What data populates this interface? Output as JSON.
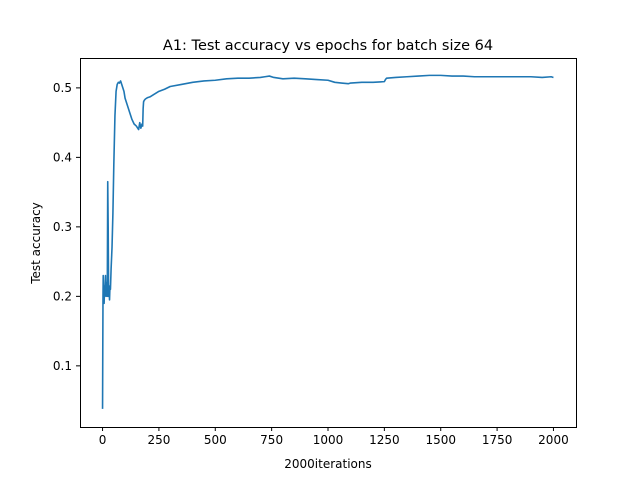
{
  "chart_data": {
    "type": "line",
    "title": "A1: Test accuracy vs epochs for batch size 64",
    "xlabel": "2000iterations",
    "ylabel": "Test accuracy",
    "xlim": [
      -100,
      2100
    ],
    "ylim": [
      0.012,
      0.543
    ],
    "xticks": [
      0,
      250,
      500,
      750,
      1000,
      1250,
      1500,
      1750,
      2000
    ],
    "yticks": [
      0.1,
      0.2,
      0.3,
      0.4,
      0.5
    ],
    "ytick_labels": [
      "0.1",
      "0.2",
      "0.3",
      "0.4",
      "0.5"
    ],
    "grid": false,
    "series_color": "#1f77b4",
    "series": [
      {
        "x": [
          0,
          1,
          2,
          3,
          5,
          7,
          9,
          11,
          13,
          15,
          17,
          19,
          21,
          23,
          25,
          27,
          29,
          31,
          33,
          35,
          38,
          42,
          46,
          50,
          55,
          60,
          65,
          70,
          75,
          80,
          85,
          90,
          95,
          100,
          110,
          120,
          130,
          140,
          150,
          160,
          165,
          170,
          175,
          178,
          180,
          182,
          185,
          190,
          200,
          210,
          225,
          250,
          275,
          300,
          350,
          400,
          450,
          500,
          550,
          600,
          650,
          700,
          720,
          740,
          760,
          800,
          850,
          900,
          950,
          1000,
          1030,
          1060,
          1090,
          1100,
          1150,
          1200,
          1250,
          1255,
          1260,
          1300,
          1350,
          1400,
          1450,
          1500,
          1550,
          1600,
          1650,
          1700,
          1750,
          1800,
          1850,
          1900,
          1950,
          1990,
          2000
        ],
        "y": [
          0.038,
          0.12,
          0.2,
          0.23,
          0.21,
          0.19,
          0.215,
          0.205,
          0.23,
          0.2,
          0.21,
          0.22,
          0.2,
          0.365,
          0.3,
          0.2,
          0.21,
          0.195,
          0.215,
          0.21,
          0.24,
          0.27,
          0.32,
          0.39,
          0.46,
          0.495,
          0.505,
          0.508,
          0.507,
          0.51,
          0.505,
          0.5,
          0.495,
          0.485,
          0.475,
          0.465,
          0.455,
          0.448,
          0.445,
          0.44,
          0.45,
          0.442,
          0.448,
          0.445,
          0.47,
          0.48,
          0.482,
          0.484,
          0.486,
          0.487,
          0.49,
          0.495,
          0.498,
          0.502,
          0.505,
          0.508,
          0.51,
          0.511,
          0.513,
          0.514,
          0.514,
          0.515,
          0.516,
          0.517,
          0.515,
          0.513,
          0.514,
          0.513,
          0.512,
          0.511,
          0.508,
          0.507,
          0.506,
          0.507,
          0.508,
          0.508,
          0.509,
          0.512,
          0.514,
          0.515,
          0.516,
          0.517,
          0.518,
          0.518,
          0.517,
          0.517,
          0.516,
          0.516,
          0.516,
          0.516,
          0.516,
          0.516,
          0.515,
          0.516,
          0.515
        ]
      }
    ]
  }
}
